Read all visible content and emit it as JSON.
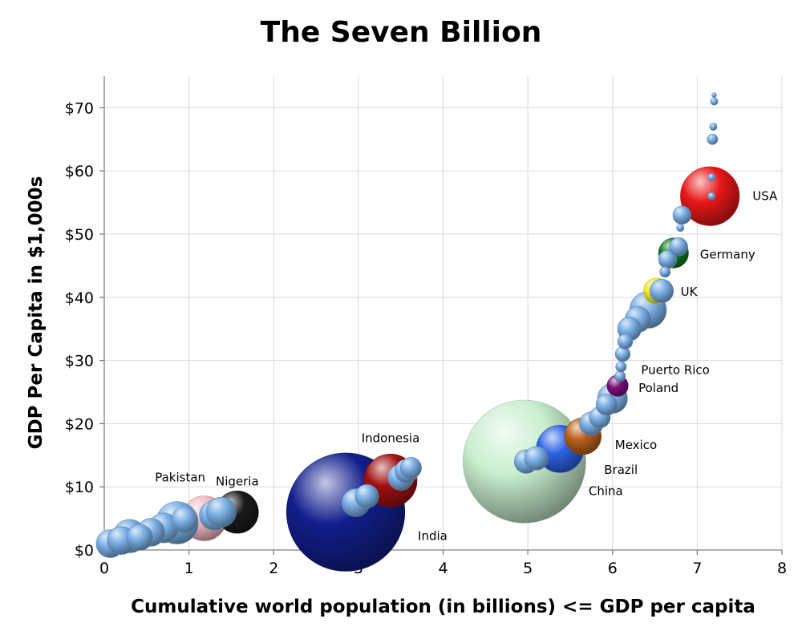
{
  "chart_data": {
    "type": "scatter",
    "title": "The Seven Billion",
    "xlabel": "Cumulative world population (in billions) <= GDP per capita",
    "ylabel": "GDP Per Capita in $1,000s",
    "xlim": [
      0,
      8
    ],
    "ylim": [
      0,
      75
    ],
    "x_ticks": [
      "0",
      "1",
      "2",
      "3",
      "4",
      "5",
      "6",
      "7",
      "8"
    ],
    "y_ticks": [
      "$0",
      "$10",
      "$20",
      "$30",
      "$40",
      "$50",
      "$60",
      "$70"
    ],
    "grid": true,
    "bubble_colors": {
      "default": "#7aaee4",
      "Pakistan": "#f4b6bf",
      "Nigeria": "#1a1a1a",
      "India": "#121e8c",
      "Indonesia": "#a01010",
      "China": "#c9efcf",
      "Brazil": "#2e62e6",
      "Mexico": "#b8601c",
      "Poland": "#7a107a",
      "UK": "#f2ea2a",
      "Germany": "#0f7a1c",
      "USA": "#e81818"
    },
    "points": [
      {
        "x": 0.07,
        "y": 1.0,
        "pop": 0.07
      },
      {
        "x": 0.2,
        "y": 1.5,
        "pop": 0.07
      },
      {
        "x": 0.3,
        "y": 2.2,
        "pop": 0.1
      },
      {
        "x": 0.42,
        "y": 2.0,
        "pop": 0.06
      },
      {
        "x": 0.55,
        "y": 2.8,
        "pop": 0.07
      },
      {
        "x": 0.7,
        "y": 3.5,
        "pop": 0.08
      },
      {
        "x": 0.86,
        "y": 4.3,
        "pop": 0.16
      },
      {
        "x": 0.95,
        "y": 4.8,
        "pop": 0.06
      },
      {
        "x": 1.18,
        "y": 5.0,
        "pop": 0.18,
        "label": "Pakistan"
      },
      {
        "x": 1.3,
        "y": 5.5,
        "pop": 0.08
      },
      {
        "x": 1.38,
        "y": 6.0,
        "pop": 0.08
      },
      {
        "x": 1.57,
        "y": 6.0,
        "pop": 0.16,
        "label": "Nigeria"
      },
      {
        "x": 2.85,
        "y": 6.0,
        "pop": 1.25,
        "label": "India"
      },
      {
        "x": 2.97,
        "y": 7.5,
        "pop": 0.07
      },
      {
        "x": 3.1,
        "y": 8.5,
        "pop": 0.05
      },
      {
        "x": 3.38,
        "y": 11.0,
        "pop": 0.25,
        "label": "Indonesia"
      },
      {
        "x": 3.5,
        "y": 11.5,
        "pop": 0.06
      },
      {
        "x": 3.57,
        "y": 12.5,
        "pop": 0.05
      },
      {
        "x": 3.62,
        "y": 13.0,
        "pop": 0.04
      },
      {
        "x": 4.96,
        "y": 14.0,
        "pop": 1.35,
        "label": "China"
      },
      {
        "x": 4.98,
        "y": 14.0,
        "pop": 0.05
      },
      {
        "x": 5.1,
        "y": 14.5,
        "pop": 0.05
      },
      {
        "x": 5.38,
        "y": 16.0,
        "pop": 0.2,
        "label": "Brazil"
      },
      {
        "x": 5.65,
        "y": 18.0,
        "pop": 0.12,
        "label": "Mexico"
      },
      {
        "x": 5.75,
        "y": 20.0,
        "pop": 0.05
      },
      {
        "x": 5.85,
        "y": 21.0,
        "pop": 0.04
      },
      {
        "x": 5.93,
        "y": 23.0,
        "pop": 0.04
      },
      {
        "x": 6.0,
        "y": 24.0,
        "pop": 0.08
      },
      {
        "x": 6.06,
        "y": 26.0,
        "pop": 0.04,
        "label": "Poland"
      },
      {
        "x": 6.09,
        "y": 27.5,
        "pop": 0.01
      },
      {
        "x": 6.1,
        "y": 29.0,
        "pop": 0.01,
        "label": "Puerto Rico"
      },
      {
        "x": 6.12,
        "y": 31.0,
        "pop": 0.02
      },
      {
        "x": 6.15,
        "y": 33.0,
        "pop": 0.02
      },
      {
        "x": 6.2,
        "y": 35.0,
        "pop": 0.05
      },
      {
        "x": 6.3,
        "y": 36.5,
        "pop": 0.06
      },
      {
        "x": 6.42,
        "y": 38.0,
        "pop": 0.12
      },
      {
        "x": 6.52,
        "y": 41.0,
        "pop": 0.06,
        "label": "UK"
      },
      {
        "x": 6.58,
        "y": 41.0,
        "pop": 0.05
      },
      {
        "x": 6.62,
        "y": 44.0,
        "pop": 0.01
      },
      {
        "x": 6.65,
        "y": 46.0,
        "pop": 0.03
      },
      {
        "x": 6.72,
        "y": 47.0,
        "pop": 0.08,
        "label": "Germany"
      },
      {
        "x": 6.78,
        "y": 48.0,
        "pop": 0.03
      },
      {
        "x": 6.8,
        "y": 51.0,
        "pop": 0.005
      },
      {
        "x": 6.82,
        "y": 53.0,
        "pop": 0.03
      },
      {
        "x": 7.15,
        "y": 56.0,
        "pop": 0.31,
        "label": "USA"
      },
      {
        "x": 7.17,
        "y": 56.0,
        "pop": 0.005
      },
      {
        "x": 7.17,
        "y": 59.0,
        "pop": 0.005
      },
      {
        "x": 7.18,
        "y": 65.0,
        "pop": 0.01
      },
      {
        "x": 7.19,
        "y": 67.0,
        "pop": 0.005
      },
      {
        "x": 7.2,
        "y": 71.0,
        "pop": 0.005
      },
      {
        "x": 7.2,
        "y": 72.0,
        "pop": 0.002
      }
    ]
  }
}
